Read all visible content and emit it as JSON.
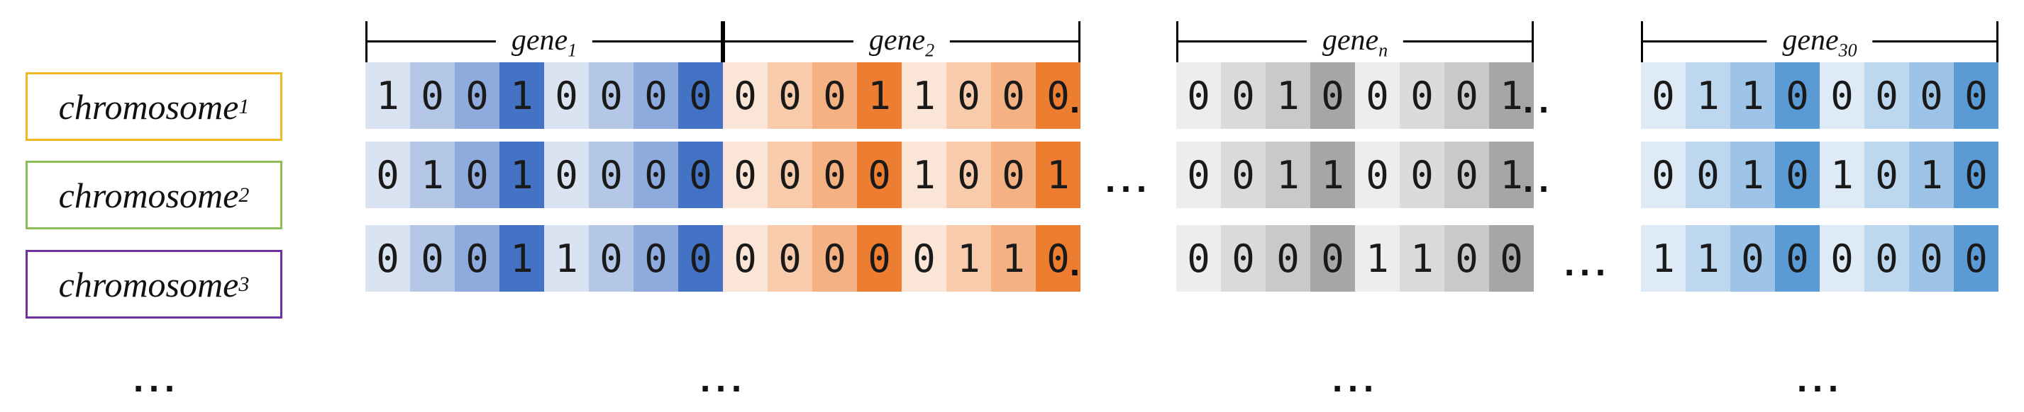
{
  "diagram": {
    "chromosomes": [
      {
        "base": "chromosome",
        "sub": "1",
        "border_color": "#EFB824"
      },
      {
        "base": "chromosome",
        "sub": "2",
        "border_color": "#8CBE57"
      },
      {
        "base": "chromosome",
        "sub": "3",
        "border_color": "#7030A0"
      }
    ],
    "genes": [
      {
        "base": "gene",
        "sub": "1",
        "palette": [
          "#DAE3F2",
          "#B4C7E7",
          "#8FAADC",
          "#4472C4"
        ]
      },
      {
        "base": "gene",
        "sub": "2",
        "palette": [
          "#FBE5D6",
          "#F8CBAD",
          "#F4B183",
          "#ED7D31"
        ]
      },
      {
        "base": "gene",
        "sub": "n",
        "palette": [
          "#EDEDED",
          "#DBDBDB",
          "#C9C9C9",
          "#A6A6A6"
        ]
      },
      {
        "base": "gene",
        "sub": "30",
        "palette": [
          "#DEEBF7",
          "#BDD7EE",
          "#9DC3E6",
          "#5B9BD5"
        ]
      }
    ],
    "cell_shade_pattern": [
      0,
      1,
      2,
      3,
      0,
      1,
      2,
      3
    ],
    "rows": [
      {
        "segments": [
          {
            "bits": [
              1,
              0,
              0,
              1,
              0,
              0,
              0,
              0
            ],
            "edge_dots": ""
          },
          {
            "bits": [
              0,
              0,
              0,
              1,
              1,
              0,
              0,
              0
            ],
            "edge_dots": "."
          },
          {
            "bits": [
              0,
              0,
              1,
              0,
              0,
              0,
              0,
              1
            ],
            "edge_dots": ".."
          },
          {
            "bits": [
              0,
              1,
              1,
              0,
              0,
              0,
              0,
              0
            ],
            "edge_dots": ""
          }
        ],
        "gap_ellipsis": [
          "",
          ""
        ]
      },
      {
        "segments": [
          {
            "bits": [
              0,
              1,
              0,
              1,
              0,
              0,
              0,
              0
            ],
            "edge_dots": ""
          },
          {
            "bits": [
              0,
              0,
              0,
              0,
              1,
              0,
              0,
              1
            ],
            "edge_dots": ""
          },
          {
            "bits": [
              0,
              0,
              1,
              1,
              0,
              0,
              0,
              1
            ],
            "edge_dots": ".."
          },
          {
            "bits": [
              0,
              0,
              1,
              0,
              1,
              0,
              1,
              0
            ],
            "edge_dots": ""
          }
        ],
        "gap_ellipsis": [
          "...",
          ""
        ]
      },
      {
        "segments": [
          {
            "bits": [
              0,
              0,
              0,
              1,
              1,
              0,
              0,
              0
            ],
            "edge_dots": ""
          },
          {
            "bits": [
              0,
              0,
              0,
              0,
              0,
              1,
              1,
              0
            ],
            "edge_dots": "."
          },
          {
            "bits": [
              0,
              0,
              0,
              0,
              1,
              1,
              0,
              0
            ],
            "edge_dots": ""
          },
          {
            "bits": [
              1,
              1,
              0,
              0,
              0,
              0,
              0,
              0
            ],
            "edge_dots": ""
          }
        ],
        "gap_ellipsis": [
          "",
          "..."
        ]
      }
    ],
    "bottom_ellipses": [
      "...",
      "...",
      "...",
      "..."
    ]
  }
}
